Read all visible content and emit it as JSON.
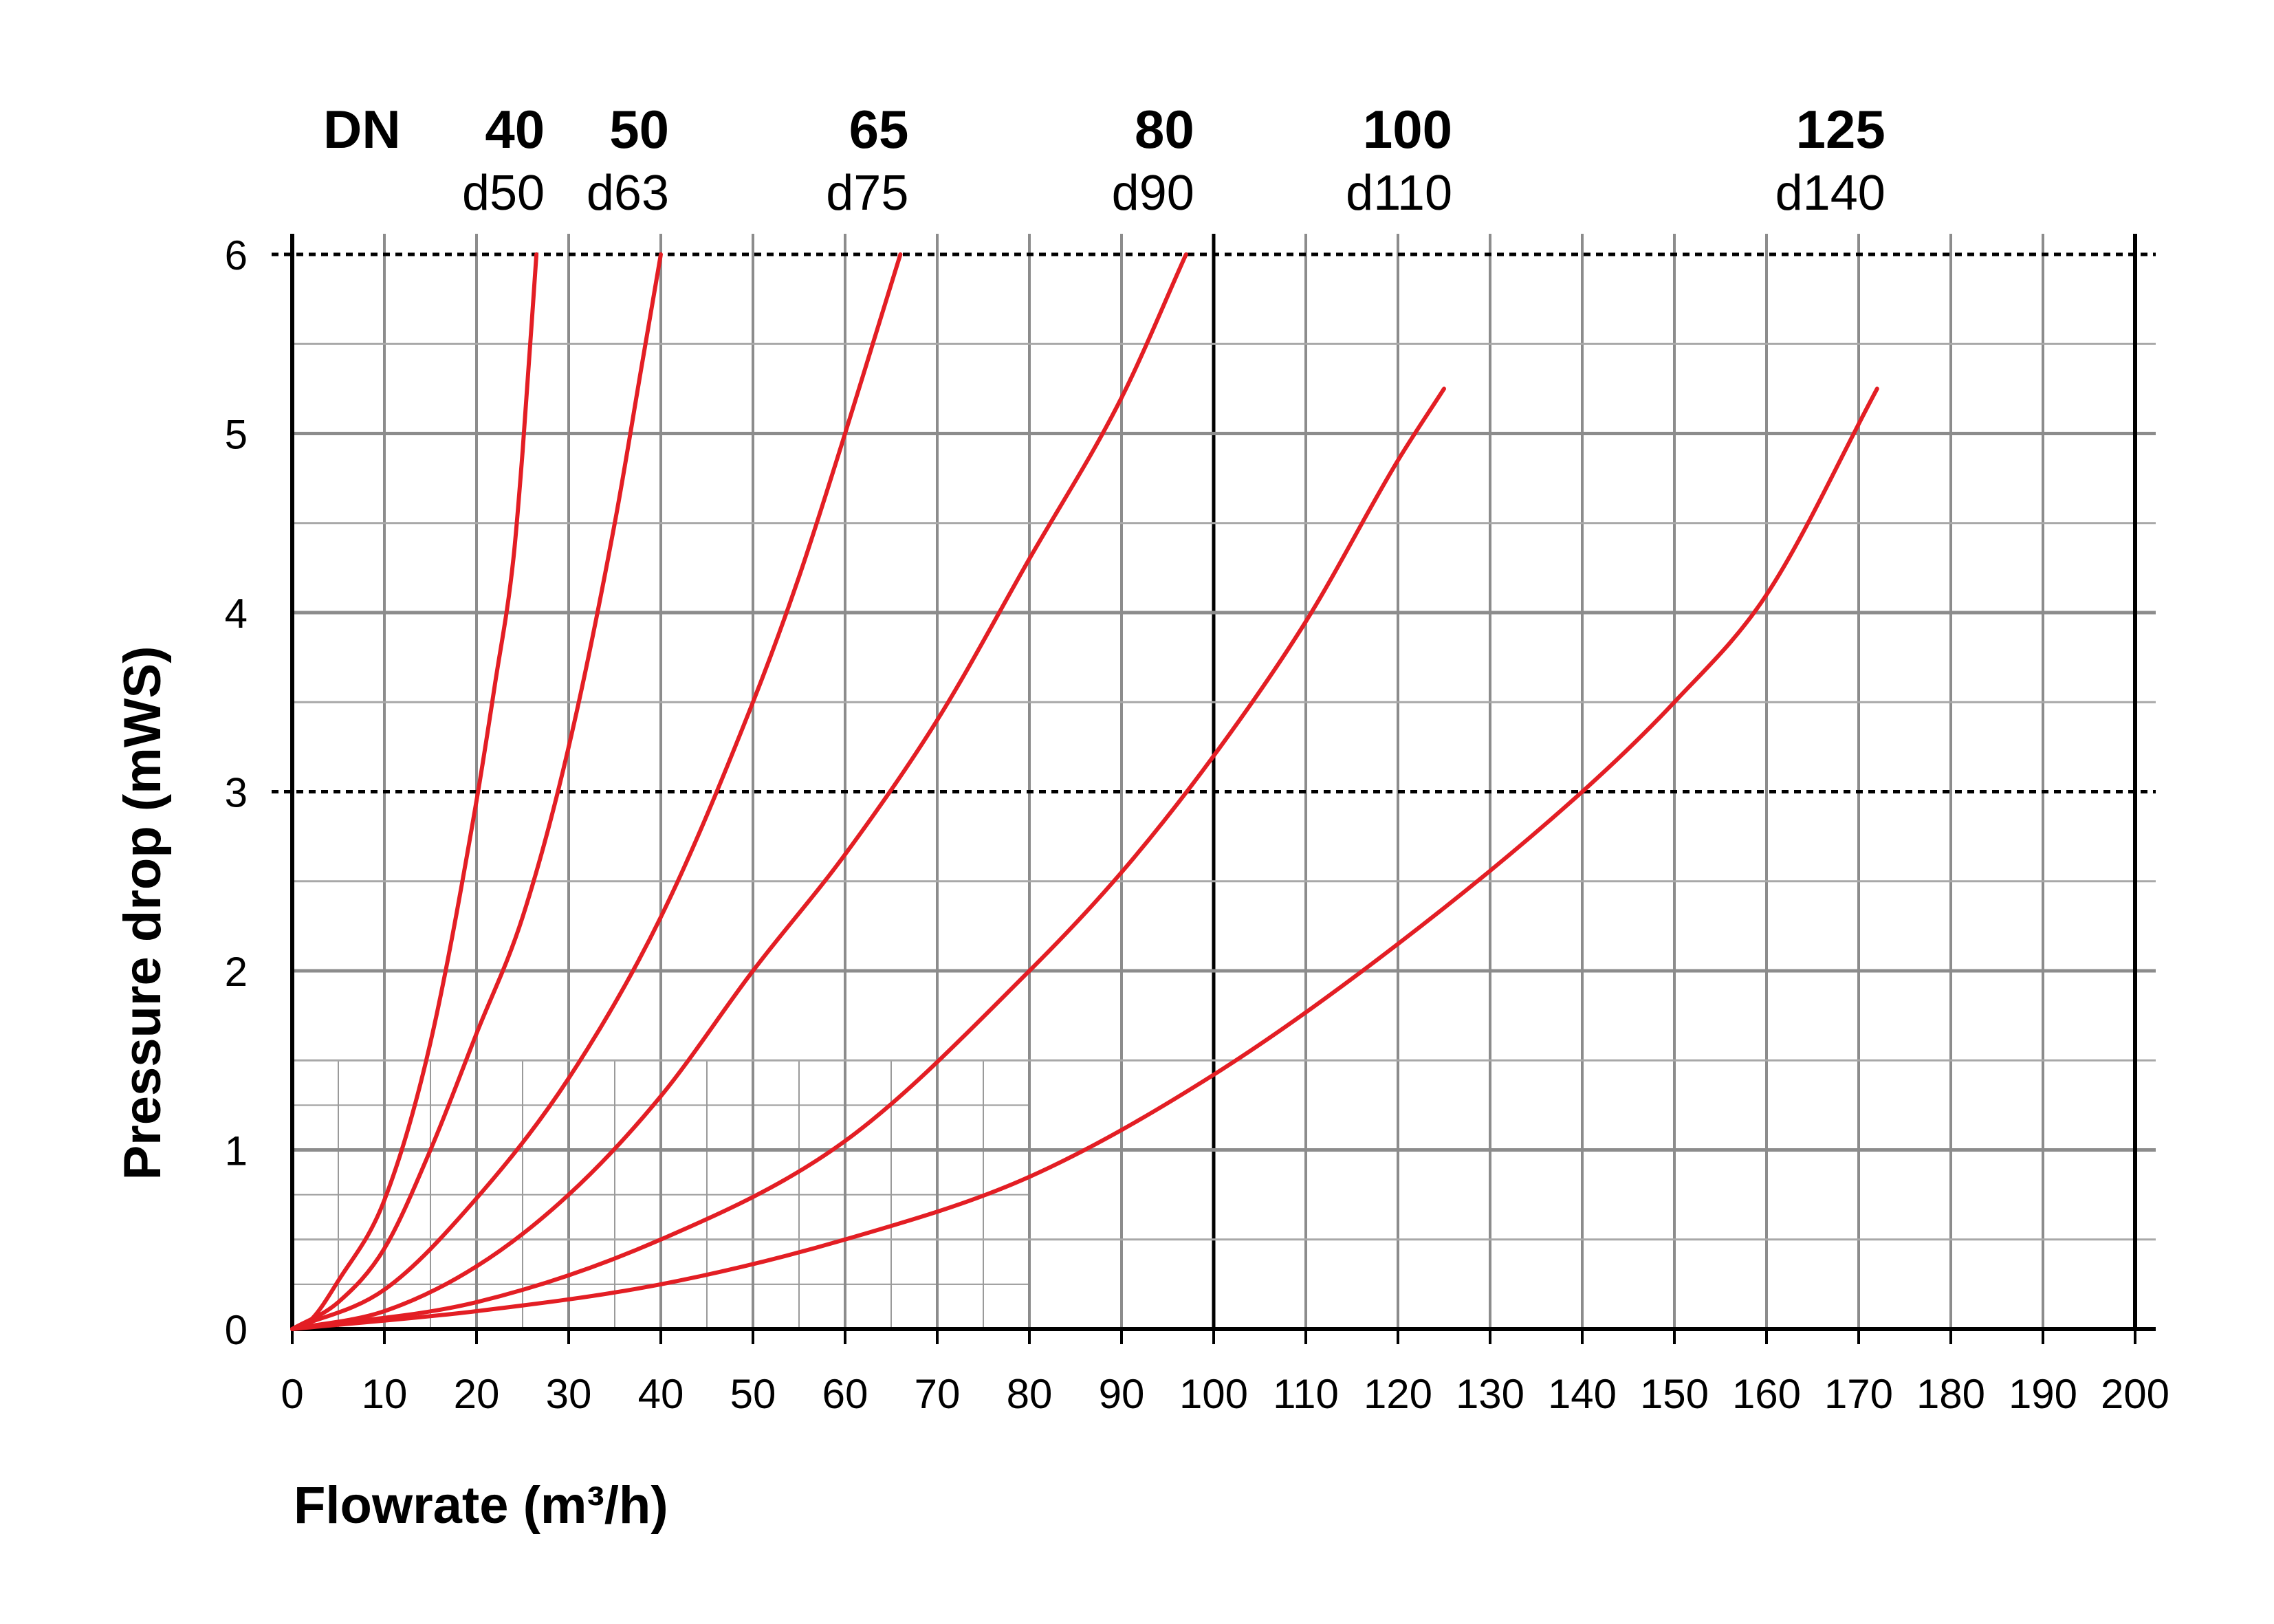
{
  "chart_data": {
    "type": "line",
    "title": "",
    "xlabel": "Flowrate (m³/h)",
    "ylabel": "Pressure drop (mWS)",
    "xlim": [
      0,
      200
    ],
    "ylim": [
      0,
      6
    ],
    "x_ticks": [
      0,
      10,
      20,
      30,
      40,
      50,
      60,
      70,
      80,
      90,
      100,
      110,
      120,
      130,
      140,
      150,
      160,
      170,
      180,
      190,
      200
    ],
    "y_ticks": [
      0,
      1,
      2,
      3,
      4,
      5,
      6
    ],
    "grid": true,
    "dashed_reference_lines_y": [
      3,
      6
    ],
    "line_color": "#e31e24",
    "header_label": "DN",
    "series": [
      {
        "name": "40",
        "subname": "d50",
        "x": [
          0,
          2,
          5,
          10,
          15,
          20,
          22,
          24,
          25,
          26.5
        ],
        "y": [
          0,
          0.05,
          0.27,
          0.72,
          1.6,
          2.95,
          3.6,
          4.3,
          4.9,
          6.0
        ]
      },
      {
        "name": "50",
        "subname": "d63",
        "x": [
          0,
          5,
          10,
          15,
          20,
          25,
          30,
          35,
          38,
          40
        ],
        "y": [
          0,
          0.15,
          0.45,
          1.0,
          1.65,
          2.3,
          3.25,
          4.5,
          5.4,
          6.0
        ]
      },
      {
        "name": "65",
        "subname": "d75",
        "x": [
          0,
          10,
          20,
          30,
          40,
          50,
          55,
          60,
          63,
          66
        ],
        "y": [
          0,
          0.22,
          0.73,
          1.4,
          2.3,
          3.5,
          4.2,
          5.0,
          5.5,
          6.0
        ]
      },
      {
        "name": "80",
        "subname": "d90",
        "x": [
          0,
          10,
          20,
          30,
          40,
          50,
          60,
          70,
          80,
          90,
          97
        ],
        "y": [
          0,
          0.1,
          0.35,
          0.75,
          1.3,
          2.0,
          2.65,
          3.4,
          4.3,
          5.2,
          6.0
        ]
      },
      {
        "name": "100",
        "subname": "d110",
        "x": [
          0,
          20,
          40,
          60,
          80,
          90,
          100,
          110,
          120,
          125
        ],
        "y": [
          0,
          0.15,
          0.5,
          1.05,
          2.0,
          2.55,
          3.2,
          3.95,
          4.85,
          5.25
        ]
      },
      {
        "name": "125",
        "subname": "d140",
        "x": [
          0,
          20,
          40,
          60,
          80,
          100,
          120,
          140,
          150,
          160,
          172
        ],
        "y": [
          0,
          0.1,
          0.25,
          0.5,
          0.85,
          1.42,
          2.15,
          3.0,
          3.5,
          4.1,
          5.25
        ]
      }
    ]
  }
}
